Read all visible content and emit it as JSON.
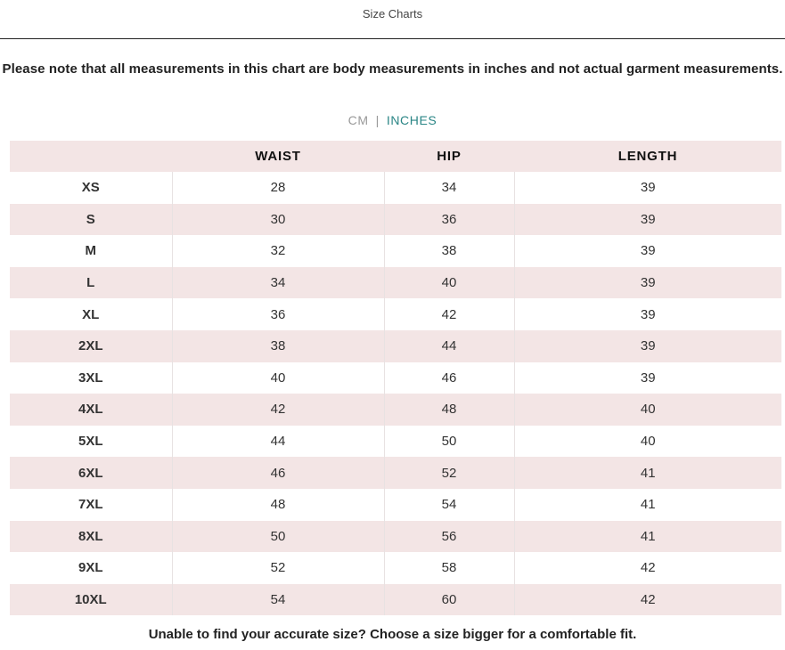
{
  "header": {
    "title": "Size Charts"
  },
  "note": "Please note that all measurements in this chart are body measurements in inches and not actual garment measurements.",
  "unit_toggle": {
    "cm_label": "CM",
    "separator": "|",
    "inches_label": "INCHES",
    "selected": "INCHES",
    "active_color": "#2a8585"
  },
  "table": {
    "columns": [
      "",
      "WAIST",
      "HIP",
      "LENGTH"
    ],
    "rows": [
      [
        "XS",
        "28",
        "34",
        "39"
      ],
      [
        "S",
        "30",
        "36",
        "39"
      ],
      [
        "M",
        "32",
        "38",
        "39"
      ],
      [
        "L",
        "34",
        "40",
        "39"
      ],
      [
        "XL",
        "36",
        "42",
        "39"
      ],
      [
        "2XL",
        "38",
        "44",
        "39"
      ],
      [
        "3XL",
        "40",
        "46",
        "39"
      ],
      [
        "4XL",
        "42",
        "48",
        "40"
      ],
      [
        "5XL",
        "44",
        "50",
        "40"
      ],
      [
        "6XL",
        "46",
        "52",
        "41"
      ],
      [
        "7XL",
        "48",
        "54",
        "41"
      ],
      [
        "8XL",
        "50",
        "56",
        "41"
      ],
      [
        "9XL",
        "52",
        "58",
        "42"
      ],
      [
        "10XL",
        "54",
        "60",
        "42"
      ]
    ]
  },
  "footer": "Unable to find your accurate size? Choose a size bigger for a comfortable fit."
}
